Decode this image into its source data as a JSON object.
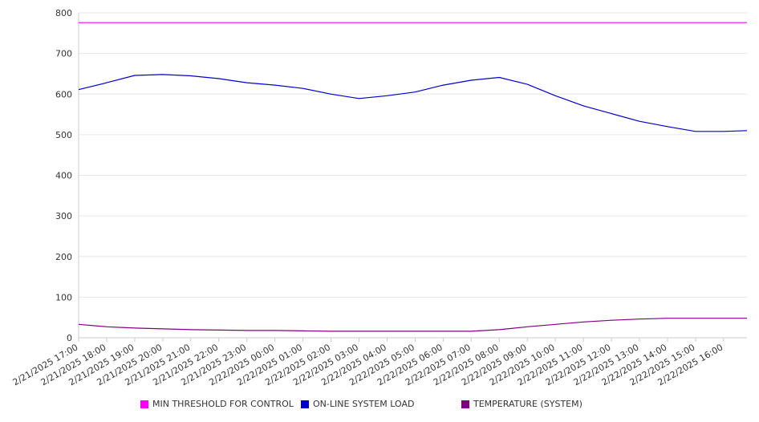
{
  "chart_data": {
    "type": "line",
    "title": "",
    "xlabel": "",
    "ylabel": "",
    "ylim": [
      0,
      800
    ],
    "yticks": [
      0,
      100,
      200,
      300,
      400,
      500,
      600,
      700,
      800
    ],
    "xticks": [
      "2/21/2025 17:00",
      "2/21/2025 18:00",
      "2/21/2025 19:00",
      "2/21/2025 20:00",
      "2/21/2025 21:00",
      "2/21/2025 22:00",
      "2/21/2025 23:00",
      "2/22/2025 00:00",
      "2/22/2025 01:00",
      "2/22/2025 02:00",
      "2/22/2025 03:00",
      "2/22/2025 04:00",
      "2/22/2025 05:00",
      "2/22/2025 06:00",
      "2/22/2025 07:00",
      "2/22/2025 08:00",
      "2/22/2025 09:00",
      "2/22/2025 10:00",
      "2/22/2025 11:00",
      "2/22/2025 12:00",
      "2/22/2025 13:00",
      "2/22/2025 14:00",
      "2/22/2025 15:00",
      "2/22/2025 16:00"
    ],
    "x": [
      "2/21/2025 17:00",
      "2/21/2025 18:00",
      "2/21/2025 19:00",
      "2/21/2025 20:00",
      "2/21/2025 21:00",
      "2/21/2025 22:00",
      "2/21/2025 23:00",
      "2/22/2025 00:00",
      "2/22/2025 01:00",
      "2/22/2025 02:00",
      "2/22/2025 03:00",
      "2/22/2025 04:00",
      "2/22/2025 05:00",
      "2/22/2025 06:00",
      "2/22/2025 07:00",
      "2/22/2025 08:00",
      "2/22/2025 09:00",
      "2/22/2025 10:00",
      "2/22/2025 11:00",
      "2/22/2025 12:00",
      "2/22/2025 13:00",
      "2/22/2025 14:00",
      "2/22/2025 15:00",
      "2/22/2025 16:00",
      "2/22/2025 16:50"
    ],
    "grid": true,
    "legend_position": "bottom",
    "series": [
      {
        "name": "MIN THRESHOLD FOR CONTROL",
        "color": "#ff00ff",
        "values": [
          776,
          776,
          776,
          776,
          776,
          776,
          776,
          776,
          776,
          776,
          776,
          776,
          776,
          776,
          776,
          776,
          776,
          776,
          776,
          776,
          776,
          776,
          776,
          776,
          776
        ]
      },
      {
        "name": "ON-LINE SYSTEM LOAD",
        "color": "#0000cc",
        "values": [
          611,
          628,
          646,
          648,
          645,
          638,
          628,
          622,
          614,
          600,
          589,
          596,
          605,
          622,
          634,
          641,
          624,
          596,
          571,
          552,
          533,
          520,
          508,
          508,
          510
        ]
      },
      {
        "name": "TEMPERATURE (SYSTEM)",
        "color": "#800080",
        "values": [
          33,
          27,
          24,
          22,
          20,
          19,
          18,
          18,
          17,
          16,
          16,
          16,
          16,
          16,
          16,
          20,
          27,
          33,
          39,
          43,
          46,
          48,
          48,
          48,
          48
        ]
      }
    ]
  }
}
